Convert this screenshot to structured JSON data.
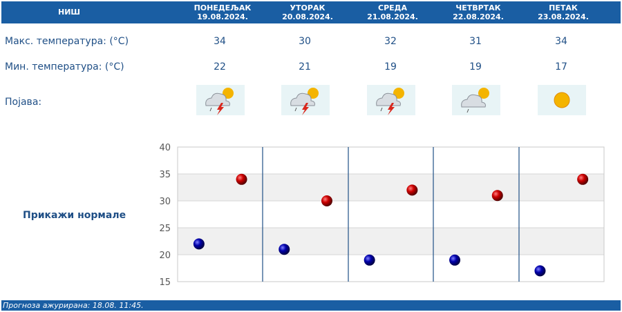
{
  "header": {
    "city": "НИШ",
    "days": [
      {
        "name": "ПОНЕДЕЉАК",
        "date": "19.08.2024."
      },
      {
        "name": "УТОРАК",
        "date": "20.08.2024."
      },
      {
        "name": "СРЕДА",
        "date": "21.08.2024."
      },
      {
        "name": "ЧЕТВРТАК",
        "date": "22.08.2024."
      },
      {
        "name": "ПЕТАК",
        "date": "23.08.2024."
      }
    ]
  },
  "rows": {
    "max_label": "Макс. температура: (°C)",
    "min_label": "Мин. температура: (°C)",
    "phenomenon_label": "Појава:",
    "max_values": [
      "34",
      "30",
      "32",
      "31",
      "34"
    ],
    "min_values": [
      "22",
      "21",
      "19",
      "19",
      "17"
    ],
    "phenomena_icons": [
      "thunderstorm-sun-icon",
      "thunderstorm-sun-icon",
      "thunderstorm-sun-icon",
      "cloud-sun-rain-icon",
      "sun-icon"
    ]
  },
  "normals_link": "Прикажи нормале",
  "footer": "Прогноза ажурирана:  18.08. 11:45.",
  "colors": {
    "header_bg": "#1a5ea3",
    "label_text": "#1f4f86",
    "max_dot": "#cc0000",
    "min_dot": "#0000aa"
  },
  "chart_data": {
    "type": "scatter",
    "categories": [
      "ПОНЕДЕЉАК",
      "УТОРАК",
      "СРЕДА",
      "ЧЕТВРТАК",
      "ПЕТАК"
    ],
    "ylim": [
      15,
      40
    ],
    "yticks": [
      "15",
      "20",
      "25",
      "30",
      "35",
      "40"
    ],
    "grid": true,
    "series": [
      {
        "values": [
          34,
          30,
          32,
          31,
          34
        ]
      },
      {
        "values": [
          22,
          21,
          19,
          19,
          17
        ]
      }
    ]
  }
}
